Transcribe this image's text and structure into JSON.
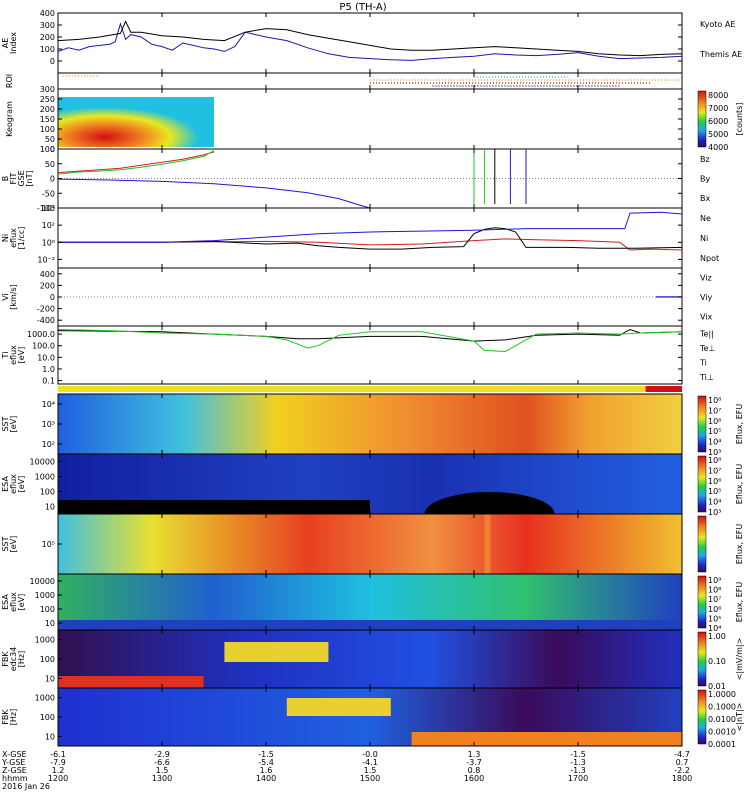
{
  "title": "P5 (TH-A)",
  "date_label": "2016 Jan 26",
  "colors": {
    "kyoto": "#1a1aa8",
    "themis": "#000000",
    "red": "#d41c1c",
    "green": "#22c422",
    "blue": "#1a1ad8",
    "black": "#000000"
  },
  "chart_data": [
    {
      "id": "ae",
      "type": "line",
      "ylabel": "AE Index",
      "ylim": [
        -100,
        400
      ],
      "yticks": [
        "400",
        "300",
        "200",
        "100",
        "0"
      ],
      "tick_values": [
        400,
        300,
        200,
        100,
        0
      ],
      "series": [
        {
          "name": "Kyoto AE",
          "color": "#1a1aa8",
          "x": [
            12.0,
            12.1,
            12.2,
            12.3,
            12.4,
            12.5,
            12.55,
            12.6,
            12.65,
            12.7,
            12.8,
            12.9,
            13.0,
            13.1,
            13.2,
            13.3,
            13.4,
            13.5,
            13.6,
            13.7,
            13.8,
            14.0,
            14.2,
            14.4,
            14.6,
            14.8,
            15.0,
            15.2,
            15.4,
            15.6,
            15.8,
            16.0,
            16.2,
            16.4,
            16.6,
            16.8,
            17.0,
            17.2,
            17.4,
            17.6,
            17.8,
            18.0
          ],
          "y": [
            80,
            110,
            90,
            120,
            130,
            140,
            160,
            310,
            180,
            220,
            200,
            140,
            120,
            90,
            150,
            130,
            110,
            100,
            80,
            120,
            240,
            200,
            170,
            110,
            60,
            30,
            20,
            10,
            5,
            20,
            30,
            40,
            60,
            50,
            45,
            55,
            70,
            40,
            20,
            25,
            30,
            40
          ]
        },
        {
          "name": "Themis AE",
          "color": "#000000",
          "x": [
            12.0,
            12.2,
            12.4,
            12.6,
            12.65,
            12.7,
            12.8,
            13.0,
            13.2,
            13.4,
            13.6,
            13.8,
            14.0,
            14.2,
            14.4,
            14.6,
            14.8,
            15.0,
            15.2,
            15.4,
            15.6,
            15.8,
            16.0,
            16.2,
            16.4,
            16.6,
            16.8,
            17.0,
            17.2,
            17.4,
            17.6,
            17.8,
            18.0
          ],
          "y": [
            170,
            180,
            200,
            230,
            330,
            240,
            240,
            210,
            200,
            180,
            170,
            240,
            270,
            260,
            220,
            190,
            160,
            130,
            100,
            90,
            90,
            100,
            110,
            120,
            110,
            100,
            90,
            80,
            60,
            50,
            45,
            55,
            60
          ]
        }
      ]
    },
    {
      "id": "roi",
      "type": "scatter",
      "ylabel": "ROI"
    },
    {
      "id": "keogram",
      "type": "heatmap",
      "ylabel": "Keogram",
      "ylim": [
        0,
        300
      ],
      "yticks": [
        "300",
        "250",
        "200",
        "150",
        "100",
        "50",
        "0"
      ],
      "tick_values": [
        300,
        250,
        200,
        150,
        100,
        50,
        0
      ],
      "x_range": [
        12.0,
        13.5
      ],
      "colorbar_label": "[counts]",
      "colorbar_ticks": [
        "8000",
        "7000",
        "6000",
        "5000",
        "4000"
      ]
    },
    {
      "id": "bfield",
      "type": "line",
      "ylabel": "B FIT GSE [nT]",
      "ylim": [
        -100,
        100
      ],
      "yticks": [
        "100",
        "50",
        "0",
        "-50",
        "-100"
      ],
      "tick_values": [
        100,
        50,
        0,
        -50,
        -100
      ],
      "series": [
        {
          "name": "Bz",
          "color": "#d41c1c",
          "x": [
            12.0,
            12.2,
            12.4,
            12.6,
            12.8,
            13.0,
            13.2,
            13.4,
            13.5
          ],
          "y": [
            20,
            25,
            30,
            35,
            45,
            55,
            65,
            80,
            90
          ]
        },
        {
          "name": "By",
          "color": "#22c422",
          "x": [
            12.0,
            12.2,
            12.4,
            12.6,
            12.8,
            13.0,
            13.2,
            13.4,
            13.5
          ],
          "y": [
            15,
            22,
            25,
            30,
            38,
            48,
            60,
            75,
            95
          ]
        },
        {
          "name": "Bx",
          "color": "#1a1ad8",
          "x": [
            12.0,
            12.5,
            13.0,
            13.5,
            14.0,
            14.4,
            14.7,
            14.9,
            15.0
          ],
          "y": [
            -2,
            -5,
            -10,
            -18,
            -32,
            -48,
            -68,
            -90,
            -100
          ]
        }
      ]
    },
    {
      "id": "density",
      "type": "line",
      "ylabel": "Ni eflux [1/cc]",
      "log": true,
      "ylim": [
        -3,
        4
      ],
      "yticks": [
        "10⁴",
        "10²",
        "10⁰",
        "10⁻²"
      ],
      "tick_values": [
        4,
        2,
        0,
        -2
      ],
      "series": [
        {
          "name": "Ne",
          "color": "#d41c1c",
          "x": [
            12.0,
            13.0,
            14.0,
            14.5,
            15.0,
            15.5,
            16.0,
            16.3,
            16.6,
            17.0,
            17.4,
            17.5,
            17.7,
            18.0
          ],
          "y": [
            0.0,
            0.0,
            0.1,
            0.0,
            -0.3,
            -0.2,
            0.2,
            0.4,
            0.3,
            0.2,
            0.0,
            -0.9,
            -0.8,
            -0.9
          ]
        },
        {
          "name": "Ni",
          "color": "#000000",
          "x": [
            12.0,
            13.0,
            13.5,
            14.0,
            14.3,
            14.5,
            14.7,
            15.0,
            15.3,
            15.6,
            15.9,
            16.0,
            16.1,
            16.2,
            16.3,
            16.4,
            16.5,
            16.6,
            16.9,
            17.2,
            17.5,
            18.0
          ],
          "y": [
            0.0,
            0.0,
            0.1,
            -0.2,
            -0.1,
            -0.4,
            -0.6,
            -0.8,
            -0.8,
            -0.6,
            -0.5,
            1.0,
            1.5,
            1.7,
            1.6,
            1.2,
            -0.6,
            -0.6,
            -0.6,
            -0.7,
            -0.7,
            -0.6
          ]
        },
        {
          "name": "Npot",
          "color": "#1a1ad8",
          "x": [
            12.0,
            13.0,
            13.5,
            14.0,
            14.5,
            15.0,
            15.5,
            16.0,
            16.5,
            17.0,
            17.45,
            17.5,
            17.8,
            18.0
          ],
          "y": [
            0.0,
            0.0,
            0.2,
            0.6,
            1.0,
            1.2,
            1.3,
            1.4,
            1.6,
            1.6,
            1.6,
            3.4,
            3.5,
            3.3
          ]
        }
      ]
    },
    {
      "id": "velocity",
      "type": "line",
      "ylabel": "Vi [km/s]",
      "ylim": [
        -500,
        500
      ],
      "yticks": [
        "400",
        "200",
        "0",
        "-200",
        "-400"
      ],
      "tick_values": [
        400,
        200,
        0,
        -200,
        -400
      ],
      "series": [
        {
          "name": "Viz",
          "color": "#d41c1c",
          "x": [
            17.75,
            18.0
          ],
          "y": [
            0,
            0
          ]
        },
        {
          "name": "Viy",
          "color": "#22c422",
          "x": [
            17.75,
            18.0
          ],
          "y": [
            -5,
            -5
          ]
        },
        {
          "name": "Vix",
          "color": "#1a1ad8",
          "x": [
            17.75,
            18.0
          ],
          "y": [
            5,
            5
          ]
        }
      ]
    },
    {
      "id": "temp",
      "type": "line",
      "ylabel": "Ti eflux [eV]",
      "log": true,
      "ylim": [
        -1.3,
        3.7
      ],
      "yticks": [
        "1000.0",
        "100.0",
        "10.0",
        "1.0",
        "0.1"
      ],
      "tick_values": [
        3,
        2,
        1,
        0,
        -1
      ],
      "series": [
        {
          "name": "Te||",
          "color": "#000000",
          "x": [
            12.0,
            13.0,
            13.5,
            14.0,
            14.3,
            14.5,
            15.0,
            15.5,
            16.0,
            16.3,
            16.6,
            17.0,
            17.4,
            17.5,
            17.6,
            18.0
          ],
          "y": [
            3.3,
            3.2,
            3.0,
            2.8,
            2.6,
            2.6,
            2.8,
            2.8,
            2.4,
            2.5,
            2.9,
            3.0,
            2.9,
            3.4,
            3.1,
            3.2
          ]
        },
        {
          "name": "Te⊥",
          "color": "#d41c1c",
          "x": [],
          "y": []
        },
        {
          "name": "Ti",
          "color": "#22c422",
          "x": [
            12.0,
            12.5,
            13.0,
            13.5,
            14.0,
            14.2,
            14.4,
            14.5,
            14.7,
            15.0,
            15.5,
            16.0,
            16.1,
            16.3,
            16.6,
            17.0,
            17.4,
            17.6,
            18.0
          ],
          "y": [
            3.4,
            3.3,
            3.1,
            3.0,
            2.8,
            2.5,
            1.8,
            2.0,
            2.9,
            3.2,
            3.2,
            2.4,
            1.6,
            1.5,
            3.0,
            3.1,
            3.0,
            3.1,
            3.2
          ]
        },
        {
          "name": "Ti⊥",
          "color": "#1a1ad8",
          "x": [],
          "y": []
        }
      ]
    },
    {
      "id": "sst_ion",
      "type": "heatmap",
      "ylabel": "SST [eV]",
      "yticks": [
        "10⁴",
        "10³",
        "10²"
      ],
      "colorbar_label": "Eflux, EFU",
      "colorbar_ticks": [
        "10⁸",
        "10⁷",
        "10⁶",
        "10⁵",
        "10⁴",
        "10³"
      ]
    },
    {
      "id": "esa_ion",
      "type": "heatmap",
      "ylabel": "ESA eflux [eV]",
      "yticks": [
        "10000",
        "1000",
        "100",
        "10"
      ],
      "colorbar_label": "Eflux, EFU",
      "colorbar_ticks": [
        "10⁸",
        "10⁷",
        "10⁶",
        "10⁵",
        "10⁴",
        "10³"
      ]
    },
    {
      "id": "sst_elec",
      "type": "heatmap",
      "ylabel": "SST [eV]",
      "yticks": [
        "10⁵"
      ],
      "colorbar_label": "Eflux, EFU"
    },
    {
      "id": "esa_elec",
      "type": "heatmap",
      "ylabel": "ESA eflux [eV]",
      "yticks": [
        "10000",
        "1000",
        "100",
        "10"
      ],
      "colorbar_label": "Eflux, EFU",
      "colorbar_ticks": [
        "10⁹",
        "10⁸",
        "10⁷",
        "10⁶",
        "10⁵",
        "10⁴"
      ]
    },
    {
      "id": "fbk_e",
      "type": "heatmap",
      "ylabel": "FBK edc34 [Hz]",
      "yticks": [
        "1000",
        "100",
        "10"
      ],
      "colorbar_label": "<|mV/m|>",
      "colorbar_ticks": [
        "1.00",
        "0.10",
        "0.01"
      ]
    },
    {
      "id": "fbk_b",
      "type": "heatmap",
      "ylabel": "FBK [Hz]",
      "yticks": [
        "1000",
        "100",
        "10"
      ],
      "colorbar_label": "<|nT|>",
      "colorbar_ticks": [
        "1.0000",
        "0.1000",
        "0.0100",
        "0.0010",
        "0.0001"
      ]
    }
  ],
  "orbit": {
    "labels": [
      "X-GSE",
      "Y-GSE",
      "Z-GSE",
      "hhmm"
    ],
    "columns": [
      [
        "-6.1",
        "-7.9",
        "1.2",
        "1200"
      ],
      [
        "-2.9",
        "-6.6",
        "1.5",
        "1300"
      ],
      [
        "-1.5",
        "-5.4",
        "1.6",
        "1400"
      ],
      [
        "-0.0",
        "-4.1",
        "1.5",
        "1500"
      ],
      [
        "1.3",
        "-3.7",
        "0.8",
        "1600"
      ],
      [
        "-1.5",
        "-1.3",
        "-1.3",
        "1700"
      ],
      [
        "-4.7",
        "0.7",
        "-2.2",
        "1800"
      ]
    ]
  }
}
